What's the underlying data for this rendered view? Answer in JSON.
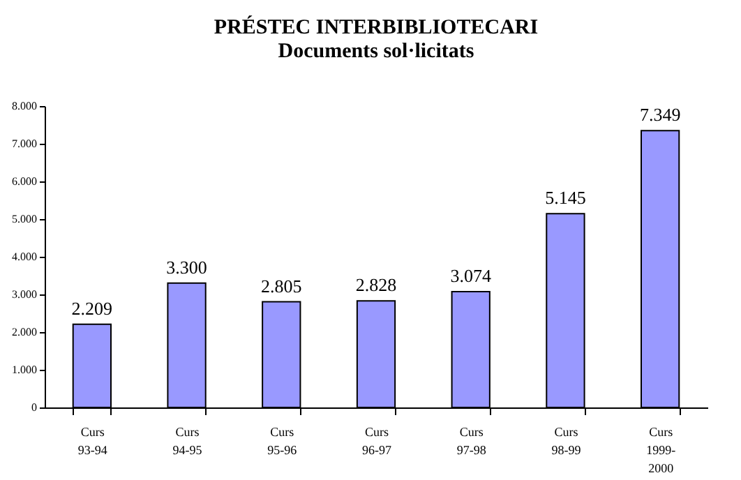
{
  "chart_data": {
    "type": "bar",
    "title": "PRÉSTEC INTERBIBLIOTECARI",
    "subtitle": "Documents sol·licitats",
    "categories": [
      "Curs 93-94",
      "Curs 94-95",
      "Curs 95-96",
      "Curs 96-97",
      "Curs 97-98",
      "Curs 98-99",
      "Curs 1999-2000"
    ],
    "values": [
      2209,
      3300,
      2805,
      2828,
      3074,
      5145,
      7349
    ],
    "value_labels": [
      "2.209",
      "3.300",
      "2.805",
      "2.828",
      "3.074",
      "5.145",
      "7.349"
    ],
    "color": "#9999ff",
    "ylim": [
      0,
      8000
    ],
    "yticks": [
      0,
      {
        "value": 1000,
        "label": "1.000"
      },
      {
        "value": 2000,
        "label": "2.000"
      },
      {
        "value": 3000,
        "label": "3.000"
      },
      {
        "value": 4000,
        "label": "4.000"
      },
      {
        "value": 5000,
        "label": "5.000"
      },
      {
        "value": 6000,
        "label": "6.000"
      },
      {
        "value": 7000,
        "label": "7.000"
      },
      {
        "value": 8000,
        "label": "8.000"
      }
    ],
    "grid": false
  }
}
